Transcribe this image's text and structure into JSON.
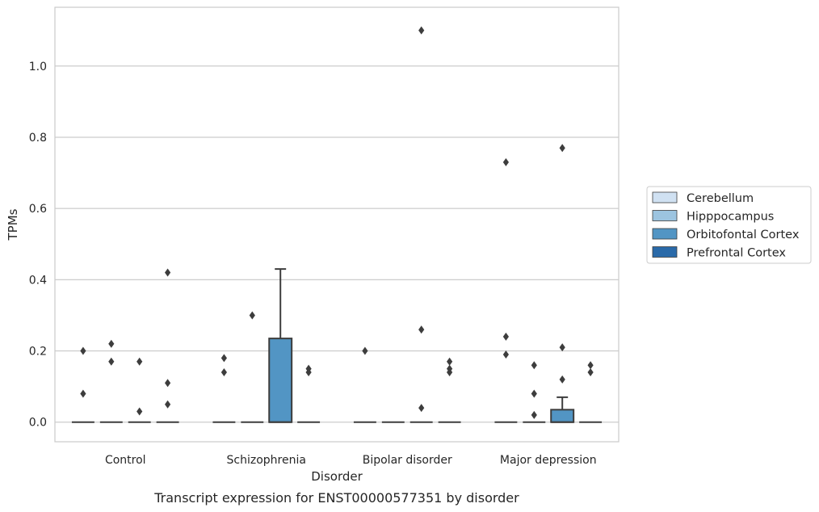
{
  "chart_data": {
    "type": "box",
    "caption": "Transcript expression for ENST00000577351 by disorder",
    "xlabel": "Disorder",
    "ylabel": "TPMs",
    "ylim": [
      -0.055,
      1.165
    ],
    "yticks": [
      0.0,
      0.2,
      0.4,
      0.6,
      0.8,
      1.0
    ],
    "ytick_labels": [
      "0.0",
      "0.2",
      "0.4",
      "0.6",
      "0.8",
      "1.0"
    ],
    "grid": true,
    "legend_position": "right",
    "categories": [
      "Control",
      "Schizophrenia",
      "Bipolar disorder",
      "Major depression"
    ],
    "series": [
      {
        "name": "Cerebellum",
        "color": "#d0e1f2"
      },
      {
        "name": "Hipppocampus",
        "color": "#9cc4e0"
      },
      {
        "name": "Orbitofontal Cortex",
        "color": "#5295c4"
      },
      {
        "name": "Prefrontal Cortex",
        "color": "#2a6aa9"
      }
    ],
    "boxes": [
      {
        "category": 0,
        "series": 0,
        "q1": 0,
        "median": 0,
        "q3": 0,
        "whisker_low": 0,
        "whisker_high": 0,
        "outliers": [
          0.08,
          0.2
        ]
      },
      {
        "category": 0,
        "series": 1,
        "q1": 0,
        "median": 0,
        "q3": 0,
        "whisker_low": 0,
        "whisker_high": 0,
        "outliers": [
          0.17,
          0.22
        ]
      },
      {
        "category": 0,
        "series": 2,
        "q1": 0,
        "median": 0,
        "q3": 0,
        "whisker_low": 0,
        "whisker_high": 0,
        "outliers": [
          0.03,
          0.17
        ]
      },
      {
        "category": 0,
        "series": 3,
        "q1": 0,
        "median": 0,
        "q3": 0,
        "whisker_low": 0,
        "whisker_high": 0,
        "outliers": [
          0.05,
          0.11,
          0.42
        ]
      },
      {
        "category": 1,
        "series": 0,
        "q1": 0,
        "median": 0,
        "q3": 0,
        "whisker_low": 0,
        "whisker_high": 0,
        "outliers": [
          0.14,
          0.18
        ]
      },
      {
        "category": 1,
        "series": 1,
        "q1": 0,
        "median": 0,
        "q3": 0,
        "whisker_low": 0,
        "whisker_high": 0,
        "outliers": [
          0.3
        ]
      },
      {
        "category": 1,
        "series": 2,
        "q1": 0,
        "median": 0,
        "q3": 0.235,
        "whisker_low": 0,
        "whisker_high": 0.43,
        "outliers": []
      },
      {
        "category": 1,
        "series": 3,
        "q1": 0,
        "median": 0,
        "q3": 0,
        "whisker_low": 0,
        "whisker_high": 0,
        "outliers": [
          0.14,
          0.15
        ]
      },
      {
        "category": 2,
        "series": 0,
        "q1": 0,
        "median": 0,
        "q3": 0,
        "whisker_low": 0,
        "whisker_high": 0,
        "outliers": [
          0.2
        ]
      },
      {
        "category": 2,
        "series": 1,
        "q1": 0,
        "median": 0,
        "q3": 0,
        "whisker_low": 0,
        "whisker_high": 0,
        "outliers": []
      },
      {
        "category": 2,
        "series": 2,
        "q1": 0,
        "median": 0,
        "q3": 0,
        "whisker_low": 0,
        "whisker_high": 0,
        "outliers": [
          0.04,
          0.26,
          1.1
        ]
      },
      {
        "category": 2,
        "series": 3,
        "q1": 0,
        "median": 0,
        "q3": 0,
        "whisker_low": 0,
        "whisker_high": 0,
        "outliers": [
          0.14,
          0.15,
          0.17
        ]
      },
      {
        "category": 3,
        "series": 0,
        "q1": 0,
        "median": 0,
        "q3": 0,
        "whisker_low": 0,
        "whisker_high": 0,
        "outliers": [
          0.19,
          0.24,
          0.73
        ]
      },
      {
        "category": 3,
        "series": 1,
        "q1": 0,
        "median": 0,
        "q3": 0,
        "whisker_low": 0,
        "whisker_high": 0,
        "outliers": [
          0.02,
          0.08,
          0.16
        ]
      },
      {
        "category": 3,
        "series": 2,
        "q1": 0,
        "median": 0,
        "q3": 0.035,
        "whisker_low": 0,
        "whisker_high": 0.07,
        "outliers": [
          0.12,
          0.21,
          0.77
        ]
      },
      {
        "category": 3,
        "series": 3,
        "q1": 0,
        "median": 0,
        "q3": 0,
        "whisker_low": 0,
        "whisker_high": 0,
        "outliers": [
          0.14,
          0.16
        ]
      }
    ]
  }
}
